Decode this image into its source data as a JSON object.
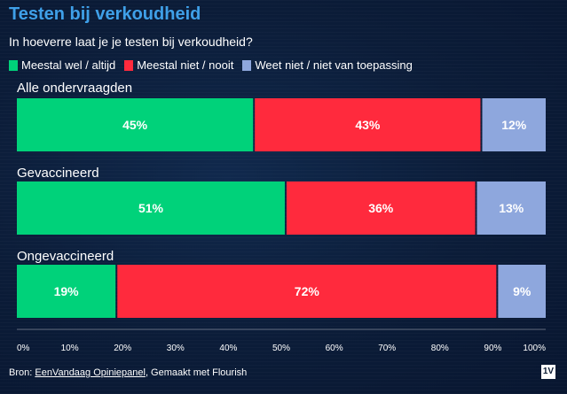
{
  "header": {
    "title": "Testen bij verkoudheid",
    "subtitle": "In hoeverre laat je je testen bij verkoudheid?"
  },
  "legend": [
    {
      "label": "Meestal wel / altijd",
      "color": "#00d27a"
    },
    {
      "label": "Meestal niet / nooit",
      "color": "#ff2a3d"
    },
    {
      "label": "Weet niet / niet van toepassing",
      "color": "#8ea7dd"
    }
  ],
  "chart_data": {
    "type": "bar",
    "orientation": "horizontal-stacked",
    "title": "Testen bij verkoudheid",
    "subtitle": "In hoeverre laat je je testen bij verkoudheid?",
    "categories": [
      "Alle ondervraagden",
      "Gevaccineerd",
      "Ongevaccineerd"
    ],
    "series": [
      {
        "name": "Meestal wel / altijd",
        "values": [
          45,
          51,
          19
        ],
        "labels": [
          "45%",
          "51%",
          "19%"
        ],
        "color": "#00d27a"
      },
      {
        "name": "Meestal niet / nooit",
        "values": [
          43,
          36,
          72
        ],
        "labels": [
          "43%",
          "36%",
          "72%"
        ],
        "color": "#ff2a3d"
      },
      {
        "name": "Weet niet / niet van toepassing",
        "values": [
          12,
          13,
          9
        ],
        "labels": [
          "12%",
          "13%",
          "9%"
        ],
        "color": "#8ea7dd"
      }
    ],
    "xlim": [
      0,
      100
    ],
    "xticks": [
      "0%",
      "10%",
      "20%",
      "30%",
      "40%",
      "50%",
      "60%",
      "70%",
      "80%",
      "90%",
      "100%"
    ],
    "xlabel": "",
    "ylabel": "",
    "legend_position": "top"
  },
  "footer": {
    "prefix": "Bron: ",
    "source_link": "EenVandaag Opiniepanel",
    "suffix": ", Gemaakt met Flourish",
    "logo": "1V"
  }
}
